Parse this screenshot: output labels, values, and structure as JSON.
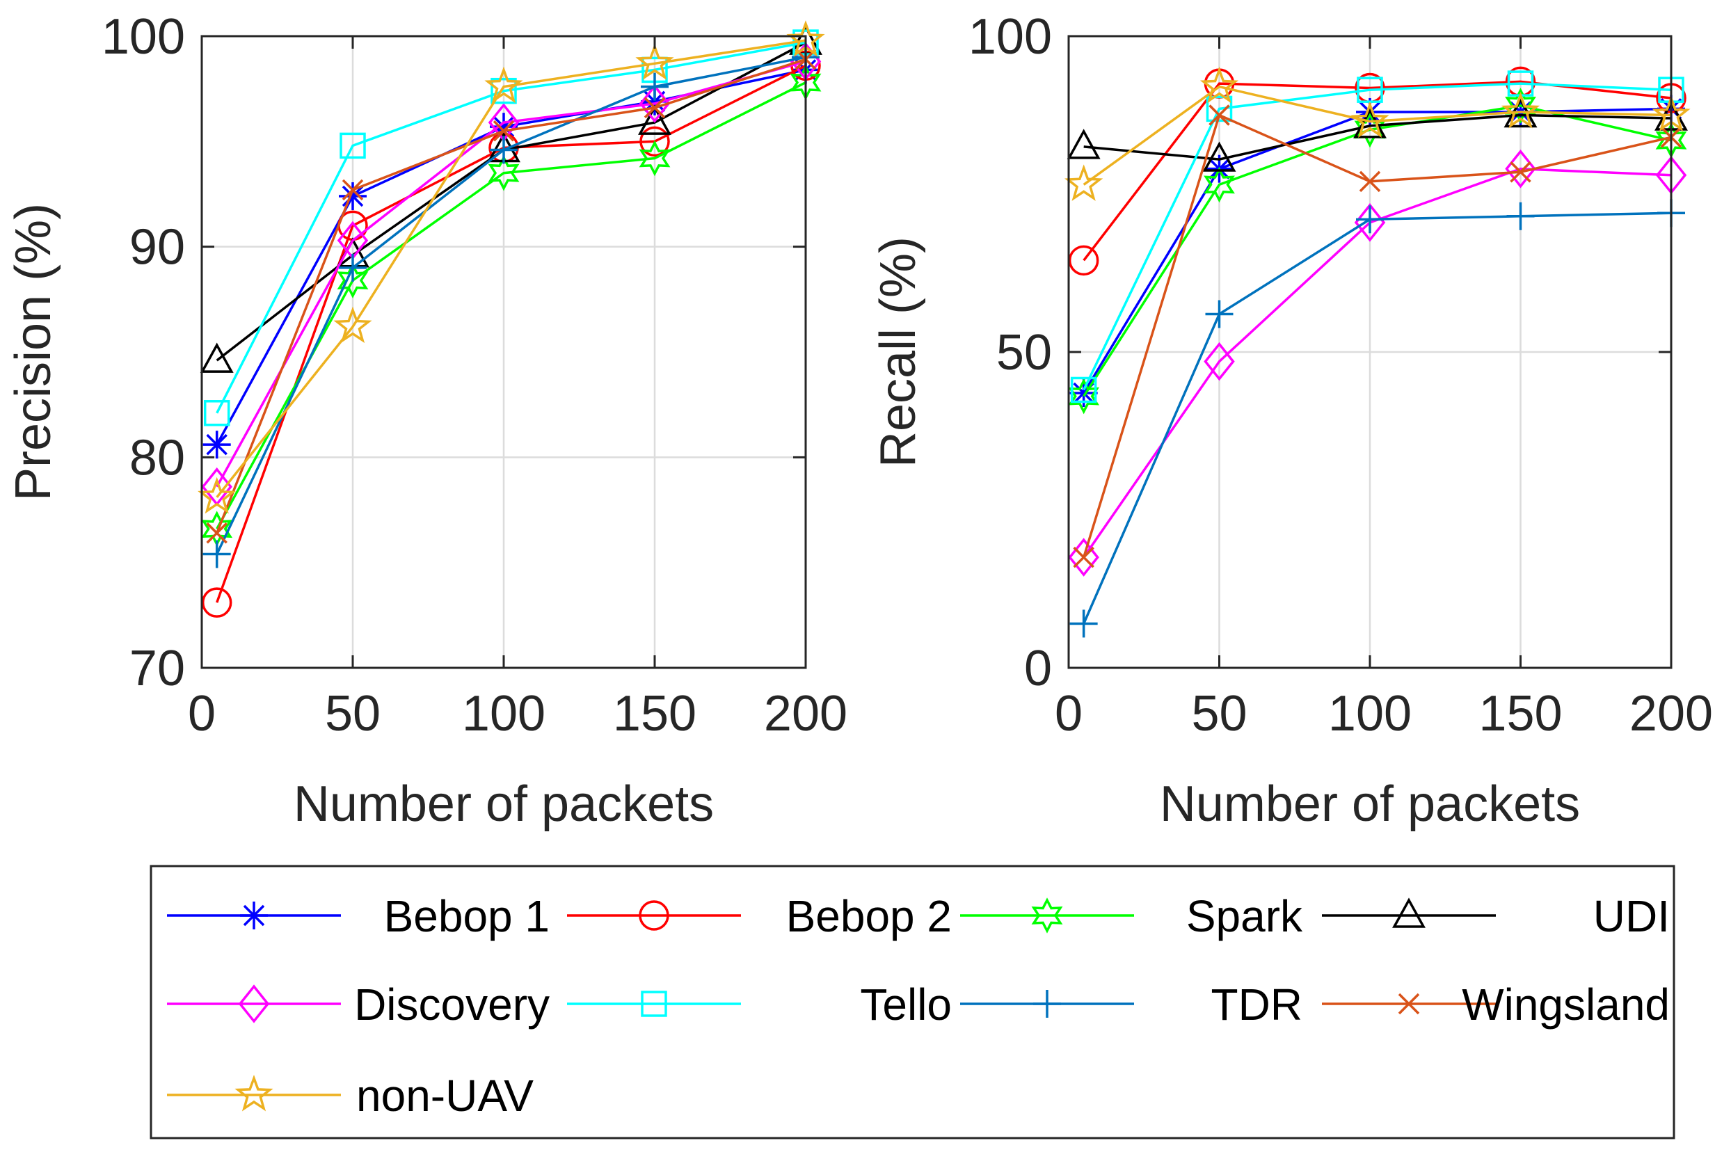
{
  "chart_data": [
    {
      "type": "line",
      "id": "precision",
      "title": "",
      "xlabel": "Number of packets",
      "ylabel": "Precision (%)",
      "xlim": [
        0,
        200
      ],
      "ylim": [
        70,
        100
      ],
      "xticks": [
        0,
        50,
        100,
        150,
        200
      ],
      "yticks": [
        70,
        80,
        90,
        100
      ],
      "grid": true,
      "x": [
        5,
        50,
        100,
        150,
        200
      ],
      "series": [
        {
          "name": "Bebop 1",
          "values": [
            80.6,
            92.4,
            95.7,
            96.9,
            98.4
          ]
        },
        {
          "name": "Bebop 2",
          "values": [
            73.1,
            91.0,
            94.7,
            95.0,
            98.6
          ]
        },
        {
          "name": "Spark",
          "values": [
            76.6,
            88.4,
            93.5,
            94.2,
            97.8
          ]
        },
        {
          "name": "UDI",
          "values": [
            84.6,
            89.6,
            94.6,
            95.9,
            99.7
          ]
        },
        {
          "name": "Discovery",
          "values": [
            78.6,
            90.3,
            95.9,
            96.8,
            98.8
          ]
        },
        {
          "name": "Tello",
          "values": [
            82.1,
            94.8,
            97.4,
            98.4,
            99.7
          ]
        },
        {
          "name": "TDR",
          "values": [
            75.4,
            89.0,
            94.6,
            97.6,
            99.0
          ]
        },
        {
          "name": "Wingsland",
          "values": [
            76.4,
            92.7,
            95.5,
            96.6,
            98.9
          ]
        },
        {
          "name": "non-UAV",
          "values": [
            78.1,
            86.2,
            97.6,
            98.7,
            99.8
          ]
        }
      ]
    },
    {
      "type": "line",
      "id": "recall",
      "title": "",
      "xlabel": "Number of packets",
      "ylabel": "Recall (%)",
      "xlim": [
        0,
        200
      ],
      "ylim": [
        0,
        100
      ],
      "xticks": [
        0,
        50,
        100,
        150,
        200
      ],
      "yticks": [
        0,
        50,
        100
      ],
      "grid": true,
      "x": [
        5,
        50,
        100,
        150,
        200
      ],
      "series": [
        {
          "name": "Bebop 1",
          "values": [
            43.5,
            79.0,
            88.0,
            88.0,
            88.5
          ]
        },
        {
          "name": "Bebop 2",
          "values": [
            64.5,
            92.5,
            91.8,
            92.8,
            90.2
          ]
        },
        {
          "name": "Spark",
          "values": [
            43.0,
            76.5,
            85.2,
            89.0,
            83.5
          ]
        },
        {
          "name": "UDI",
          "values": [
            82.5,
            80.5,
            85.8,
            87.5,
            87.0
          ]
        },
        {
          "name": "Discovery",
          "values": [
            17.5,
            48.5,
            70.5,
            79.0,
            78.0
          ]
        },
        {
          "name": "Tello",
          "values": [
            44.0,
            88.5,
            91.5,
            92.5,
            91.5
          ]
        },
        {
          "name": "TDR",
          "values": [
            7.0,
            56.0,
            71.0,
            71.5,
            72.0
          ]
        },
        {
          "name": "Wingsland",
          "values": [
            17.5,
            87.5,
            77.0,
            78.5,
            84.0
          ]
        },
        {
          "name": "non-UAV",
          "values": [
            76.5,
            92.0,
            86.5,
            88.0,
            87.5
          ]
        }
      ]
    }
  ],
  "legend": {
    "placement": "bottom",
    "entries": [
      {
        "name": "Bebop 1",
        "color": "#0000ff",
        "marker": "asterisk"
      },
      {
        "name": "Bebop 2",
        "color": "#ff0000",
        "marker": "circle"
      },
      {
        "name": "Spark",
        "color": "#00ff00",
        "marker": "hexagram"
      },
      {
        "name": "UDI",
        "color": "#000000",
        "marker": "triangle"
      },
      {
        "name": "Discovery",
        "color": "#ff00ff",
        "marker": "diamond"
      },
      {
        "name": "Tello",
        "color": "#00ffff",
        "marker": "square"
      },
      {
        "name": "TDR",
        "color": "#0072bd",
        "marker": "plus"
      },
      {
        "name": "Wingsland",
        "color": "#d95319",
        "marker": "cross"
      },
      {
        "name": "non-UAV",
        "color": "#edb120",
        "marker": "pentagram"
      }
    ]
  }
}
